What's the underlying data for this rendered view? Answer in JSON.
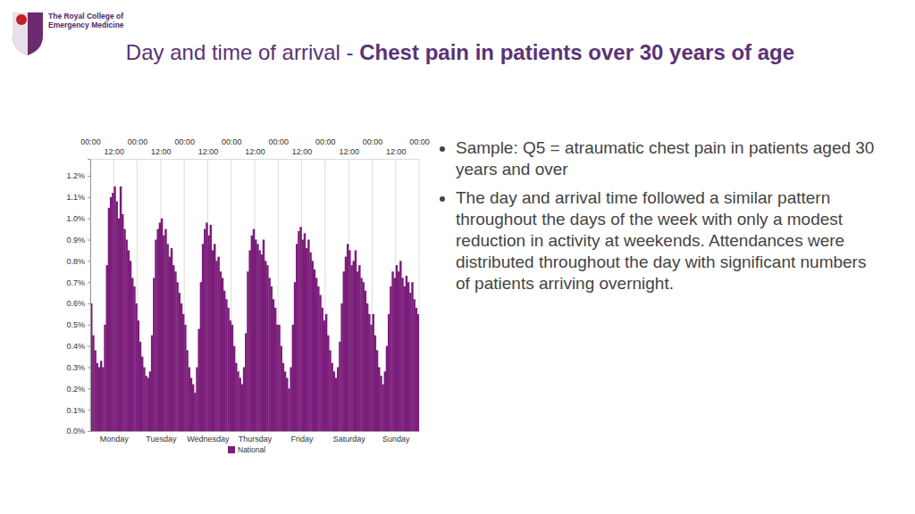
{
  "slide": {
    "logo": [
      "The Royal College of",
      "Emergency Medicine"
    ],
    "title": "Day and time of arrival - ",
    "title_bold": "Chest pain in patients over 30 years of age",
    "bullets": [
      "Sample: Q5 = atraumatic chest pain in patients aged 30 years and over",
      "The day and arrival time followed a similar pattern throughout the days of the week with only a modest reduction in activity at weekends.  Attendances were distributed throughout the day with significant numbers of patients arriving overnight."
    ]
  },
  "chart_data": {
    "type": "histogram",
    "bins": [
      0,
      1,
      2,
      3,
      4,
      5,
      6,
      7,
      8,
      9,
      10,
      11,
      12,
      13,
      14,
      15,
      16,
      17,
      18,
      19,
      20,
      21,
      22,
      23,
      24,
      25,
      26,
      27,
      28,
      29,
      30,
      31,
      32,
      33,
      34,
      35,
      36,
      37,
      38,
      39,
      40,
      41,
      42,
      43,
      44,
      45,
      46,
      47,
      48,
      49,
      50,
      51,
      52,
      53,
      54,
      55,
      56,
      57,
      58,
      59,
      60,
      61,
      62,
      63,
      64,
      65,
      66,
      67,
      68,
      69,
      70,
      71,
      72,
      73,
      74,
      75,
      76,
      77,
      78,
      79,
      80,
      81,
      82,
      83,
      84,
      85,
      86,
      87,
      88,
      89,
      90,
      91,
      92,
      93,
      94,
      95,
      96,
      97,
      98,
      99,
      100,
      101,
      102,
      103,
      104,
      105,
      106,
      107,
      108,
      109,
      110,
      111,
      112,
      113,
      114,
      115,
      116,
      117,
      118,
      119,
      120,
      121,
      122,
      123,
      124,
      125,
      126,
      127,
      128,
      129,
      130,
      131,
      132,
      133,
      134,
      135,
      136,
      137,
      138,
      139,
      140,
      141,
      142,
      143,
      144,
      145,
      146,
      147,
      148,
      149,
      150,
      151,
      152,
      153,
      154,
      155,
      156,
      157,
      158,
      159,
      160,
      161,
      162,
      163,
      164,
      165,
      166,
      167,
      168
    ],
    "series": [
      {
        "name": "National",
        "color": "#7b1e7a",
        "values": [
          0.6,
          0.45,
          0.38,
          0.32,
          0.3,
          0.33,
          0.3,
          0.5,
          0.78,
          1.05,
          1.1,
          1.12,
          1.15,
          1.08,
          1.0,
          1.15,
          1.02,
          0.95,
          0.9,
          0.85,
          0.8,
          0.72,
          0.68,
          0.6,
          0.52,
          0.42,
          0.35,
          0.3,
          0.26,
          0.25,
          0.28,
          0.45,
          0.72,
          0.9,
          0.95,
          0.98,
          1.0,
          0.92,
          0.95,
          0.88,
          0.82,
          0.86,
          0.78,
          0.75,
          0.7,
          0.65,
          0.6,
          0.55,
          0.5,
          0.38,
          0.3,
          0.25,
          0.22,
          0.18,
          0.3,
          0.48,
          0.7,
          0.88,
          0.95,
          0.98,
          0.92,
          0.97,
          0.85,
          0.88,
          0.8,
          0.82,
          0.75,
          0.72,
          0.66,
          0.62,
          0.58,
          0.52,
          0.5,
          0.4,
          0.32,
          0.28,
          0.25,
          0.22,
          0.3,
          0.46,
          0.75,
          0.85,
          0.92,
          0.95,
          0.9,
          0.88,
          0.85,
          0.83,
          0.9,
          0.8,
          0.78,
          0.72,
          0.68,
          0.62,
          0.58,
          0.5,
          0.5,
          0.4,
          0.32,
          0.28,
          0.25,
          0.2,
          0.3,
          0.5,
          0.7,
          0.88,
          0.94,
          0.96,
          0.9,
          0.93,
          0.86,
          0.9,
          0.84,
          0.8,
          0.76,
          0.72,
          0.68,
          0.64,
          0.58,
          0.52,
          0.55,
          0.45,
          0.38,
          0.32,
          0.28,
          0.25,
          0.3,
          0.42,
          0.6,
          0.75,
          0.82,
          0.88,
          0.85,
          0.78,
          0.8,
          0.85,
          0.75,
          0.78,
          0.72,
          0.7,
          0.66,
          0.6,
          0.55,
          0.5,
          0.55,
          0.45,
          0.38,
          0.3,
          0.26,
          0.22,
          0.28,
          0.4,
          0.55,
          0.68,
          0.75,
          0.72,
          0.78,
          0.75,
          0.8,
          0.72,
          0.68,
          0.73,
          0.7,
          0.65,
          0.7,
          0.62,
          0.58,
          0.55
        ]
      }
    ],
    "xlim": [
      0,
      168
    ],
    "xticks": [
      {
        "value": 0,
        "label": "00:00"
      },
      {
        "value": 12,
        "label": "12:00"
      },
      {
        "value": 24,
        "label": "00:00"
      },
      {
        "value": 36,
        "label": "12:00"
      },
      {
        "value": 48,
        "label": "00:00"
      },
      {
        "value": 60,
        "label": "12:00"
      },
      {
        "value": 72,
        "label": "00:00"
      },
      {
        "value": 84,
        "label": "12:00"
      },
      {
        "value": 96,
        "label": "00:00"
      },
      {
        "value": 108,
        "label": "12:00"
      },
      {
        "value": 120,
        "label": "00:00"
      },
      {
        "value": 132,
        "label": "12:00"
      },
      {
        "value": 144,
        "label": "00:00"
      },
      {
        "value": 156,
        "label": "12:00"
      },
      {
        "value": 168,
        "label": "00:00"
      }
    ],
    "day_ticks": [
      {
        "value": 12,
        "label": "Monday"
      },
      {
        "value": 36,
        "label": "Tuesday"
      },
      {
        "value": 60,
        "label": "Wednesday"
      },
      {
        "value": 84,
        "label": "Thursday"
      },
      {
        "value": 108,
        "label": "Friday"
      },
      {
        "value": 132,
        "label": "Saturday"
      },
      {
        "value": 156,
        "label": "Sunday"
      }
    ],
    "ylim": [
      0,
      1.28
    ],
    "yticks": [
      {
        "value": 0,
        "label": "0.0%"
      },
      {
        "value": 0.1,
        "label": "0.1%"
      },
      {
        "value": 0.2,
        "label": "0.2%"
      },
      {
        "value": 0.3,
        "label": "0.3%"
      },
      {
        "value": 0.4,
        "label": "0.4%"
      },
      {
        "value": 0.5,
        "label": "0.5%"
      },
      {
        "value": 0.6,
        "label": "0.6%"
      },
      {
        "value": 0.7,
        "label": "0.7%"
      },
      {
        "value": 0.8,
        "label": "0.8%"
      },
      {
        "value": 0.9,
        "label": "0.9%"
      },
      {
        "value": 1.0,
        "label": "1.0%"
      },
      {
        "value": 1.1,
        "label": "1.1%"
      },
      {
        "value": 1.2,
        "label": "1.2%"
      }
    ],
    "grid": true,
    "legend": "bottom"
  }
}
